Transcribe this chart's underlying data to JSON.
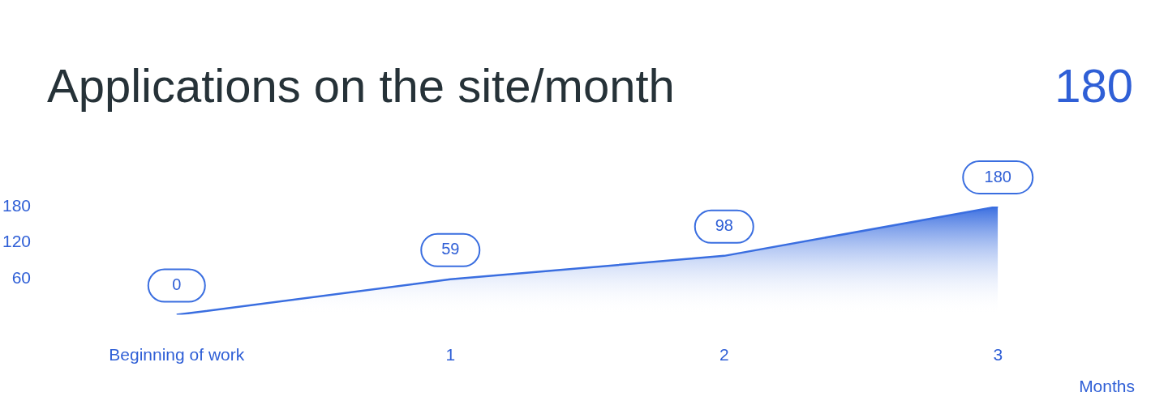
{
  "chart_data": {
    "type": "area",
    "title": "Applications on the site/month",
    "annotations": [
      "180"
    ],
    "xlabel": "Months",
    "categories": [
      "Beginning of work",
      "1",
      "2",
      "3"
    ],
    "series": [
      {
        "color": "#3a6ee0",
        "values": [
          0,
          59,
          98,
          180
        ]
      }
    ],
    "ylim": [
      0,
      180
    ],
    "yticks": [
      60,
      120,
      180
    ],
    "grid": false,
    "legend": false,
    "marker": "none",
    "data_labels": true
  }
}
